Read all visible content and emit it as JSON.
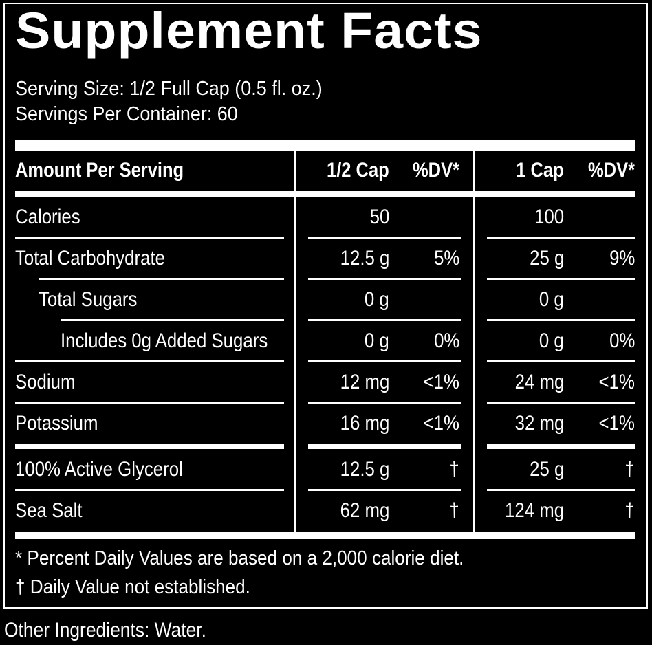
{
  "title": "Supplement Facts",
  "serving_size": "Serving Size: 1/2 Full Cap (0.5 fl. oz.)",
  "servings_per_container": "Servings Per Container: 60",
  "headers": {
    "amount": "Amount Per Serving",
    "col1": "1/2 Cap",
    "dv1": "%DV*",
    "col2": "1 Cap",
    "dv2": "%DV*"
  },
  "rows": [
    {
      "label": "Calories",
      "v1": "50",
      "d1": "",
      "v2": "100",
      "d2": ""
    },
    {
      "label": "Total Carbohydrate",
      "v1": "12.5 g",
      "d1": "5%",
      "v2": "25 g",
      "d2": "9%"
    },
    {
      "label": "Total Sugars",
      "v1": "0 g",
      "d1": "",
      "v2": "0 g",
      "d2": ""
    },
    {
      "label": "Includes 0g Added Sugars",
      "v1": "0 g",
      "d1": "0%",
      "v2": "0 g",
      "d2": "0%"
    },
    {
      "label": "Sodium",
      "v1": "12 mg",
      "d1": "<1%",
      "v2": "24 mg",
      "d2": "<1%"
    },
    {
      "label": "Potassium",
      "v1": "16 mg",
      "d1": "<1%",
      "v2": "32 mg",
      "d2": "<1%"
    },
    {
      "label": "100% Active Glycerol",
      "v1": "12.5 g",
      "d1": "†",
      "v2": "25 g",
      "d2": "†"
    },
    {
      "label": "Sea Salt",
      "v1": "62 mg",
      "d1": "†",
      "v2": "124 mg",
      "d2": "†"
    }
  ],
  "footnotes": {
    "dv_note": "* Percent Daily Values are based on a 2,000 calorie diet.",
    "dagger_note": "† Daily Value not established."
  },
  "other_ingredients": "Other Ingredients: Water."
}
